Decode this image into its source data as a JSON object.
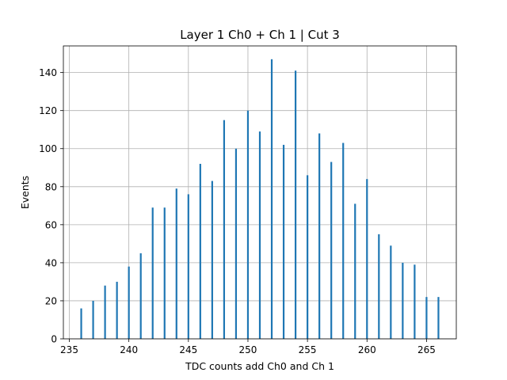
{
  "chart_data": {
    "type": "bar",
    "title": "Layer 1 Ch0 + Ch 1 | Cut 3",
    "xlabel": "TDC counts add Ch0 and Ch 1",
    "ylabel": "Events",
    "xlim": [
      234.5,
      267.5
    ],
    "ylim": [
      0,
      154
    ],
    "xticks": [
      235,
      240,
      245,
      250,
      255,
      260,
      265
    ],
    "yticks": [
      0,
      20,
      40,
      60,
      80,
      100,
      120,
      140
    ],
    "grid": true,
    "bar_color": "#1f77b4",
    "x": [
      236,
      237,
      238,
      239,
      240,
      241,
      242,
      243,
      244,
      245,
      246,
      247,
      248,
      249,
      250,
      251,
      252,
      253,
      254,
      255,
      256,
      257,
      258,
      259,
      260,
      261,
      262,
      263,
      264,
      265,
      266
    ],
    "values": [
      16,
      20,
      28,
      30,
      38,
      45,
      69,
      69,
      79,
      76,
      92,
      83,
      115,
      100,
      120,
      109,
      147,
      102,
      141,
      86,
      108,
      93,
      103,
      71,
      84,
      55,
      49,
      40,
      39,
      22,
      22
    ]
  }
}
